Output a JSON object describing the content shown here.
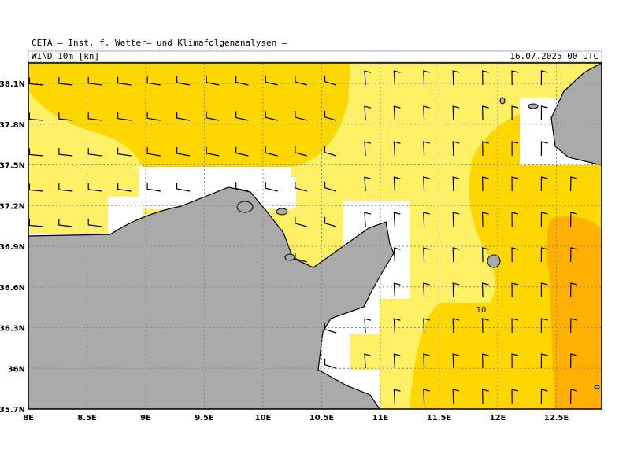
{
  "header": {
    "source": "CETA – Inst. f. Wetter– und Klimafolgenanalysen –",
    "variable": "WIND_10m_[kn]",
    "datetime": "16.07.2025 00 UTC"
  },
  "map": {
    "lon_labels": [
      "8E",
      "8.5E",
      "9E",
      "9.5E",
      "10E",
      "10.5E",
      "11E",
      "11.5E",
      "12E",
      "12.5E"
    ],
    "lat_labels": [
      "38.1N",
      "37.8N",
      "37.5N",
      "37.2N",
      "36.9N",
      "36.6N",
      "36.3N",
      "36N",
      "35.7N"
    ],
    "contour_label": "10"
  }
}
